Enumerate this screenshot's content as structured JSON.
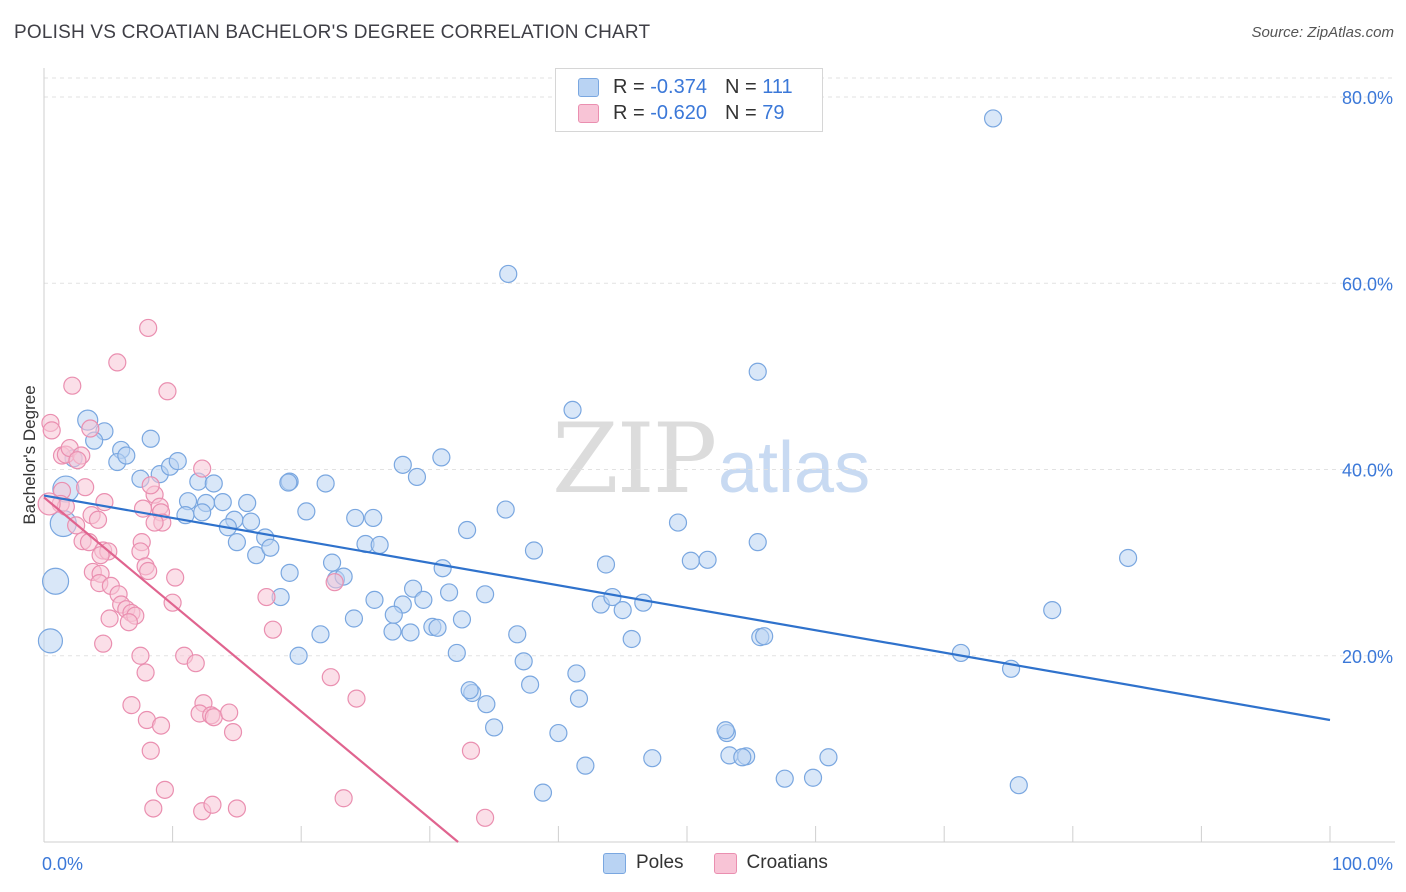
{
  "title": "POLISH VS CROATIAN BACHELOR'S DEGREE CORRELATION CHART",
  "source": "Source: ZipAtlas.com",
  "watermark": {
    "zip": "ZIP",
    "atlas": "atlas"
  },
  "legend": {
    "rows": [
      {
        "r_label": "R =",
        "r_value": "-0.374",
        "n_label": "N =",
        "n_value": "111"
      },
      {
        "r_label": "R =",
        "r_value": "-0.620",
        "n_label": "N =",
        "n_value": "79"
      }
    ]
  },
  "bottom_legend": [
    "Poles",
    "Croatians"
  ],
  "colors": {
    "poles_fill": "#b9d3f3",
    "poles_stroke": "#7aa7e0",
    "poles_line": "#2f72cc",
    "croatians_fill": "#f8c4d6",
    "croatians_stroke": "#ea8fb0",
    "croatians_line": "#e0648f",
    "axis_text": "#3b78d8",
    "grid": "#e2e2e2"
  },
  "chart_data": {
    "type": "scatter",
    "title": "POLISH VS CROATIAN BACHELOR'S DEGREE CORRELATION CHART",
    "xlabel": "",
    "ylabel": "Bachelor's Degree",
    "xlim": [
      0,
      100
    ],
    "ylim": [
      0,
      82
    ],
    "x_tick_labels": [
      "0.0%",
      "100.0%"
    ],
    "y_ticks": [
      20,
      40,
      60,
      80
    ],
    "y_tick_labels": [
      "20.0%",
      "40.0%",
      "60.0%",
      "80.0%"
    ],
    "grid": true,
    "legend_position": "top-center",
    "series": [
      {
        "name": "Poles",
        "r": -0.374,
        "n": 111,
        "trend": {
          "x": [
            0,
            100
          ],
          "y": [
            37.2,
            13.1
          ]
        },
        "points": [
          [
            1.7,
            37.9
          ],
          [
            3.4,
            45.3
          ],
          [
            4.7,
            44.1
          ],
          [
            3.9,
            43.1
          ],
          [
            2.3,
            41.2
          ],
          [
            6.0,
            42.1
          ],
          [
            8.3,
            43.3
          ],
          [
            5.7,
            40.8
          ],
          [
            6.4,
            41.5
          ],
          [
            7.5,
            39.0
          ],
          [
            9.0,
            39.5
          ],
          [
            9.8,
            40.3
          ],
          [
            10.4,
            40.9
          ],
          [
            1.5,
            34.2
          ],
          [
            0.9,
            28.0
          ],
          [
            0.5,
            21.6
          ],
          [
            12.0,
            38.7
          ],
          [
            13.2,
            38.5
          ],
          [
            11.2,
            36.6
          ],
          [
            12.6,
            36.4
          ],
          [
            13.9,
            36.5
          ],
          [
            15.8,
            36.4
          ],
          [
            11.0,
            35.1
          ],
          [
            12.3,
            35.4
          ],
          [
            14.8,
            34.6
          ],
          [
            16.1,
            34.4
          ],
          [
            14.3,
            33.8
          ],
          [
            17.2,
            32.7
          ],
          [
            15.0,
            32.2
          ],
          [
            16.5,
            30.8
          ],
          [
            17.6,
            31.6
          ],
          [
            19.1,
            38.7
          ],
          [
            19.0,
            38.6
          ],
          [
            21.9,
            38.5
          ],
          [
            20.4,
            35.5
          ],
          [
            24.2,
            34.8
          ],
          [
            25.6,
            34.8
          ],
          [
            25.0,
            32.0
          ],
          [
            26.1,
            31.9
          ],
          [
            22.4,
            30.0
          ],
          [
            22.7,
            28.2
          ],
          [
            23.3,
            28.5
          ],
          [
            19.1,
            28.9
          ],
          [
            18.4,
            26.3
          ],
          [
            25.7,
            26.0
          ],
          [
            27.9,
            25.5
          ],
          [
            28.7,
            27.2
          ],
          [
            29.5,
            26.0
          ],
          [
            27.2,
            24.4
          ],
          [
            24.1,
            24.0
          ],
          [
            21.5,
            22.3
          ],
          [
            19.8,
            20.0
          ],
          [
            27.1,
            22.6
          ],
          [
            30.2,
            23.1
          ],
          [
            31.5,
            26.8
          ],
          [
            32.5,
            23.9
          ],
          [
            31.0,
            29.4
          ],
          [
            30.6,
            23.0
          ],
          [
            27.9,
            40.5
          ],
          [
            29.0,
            39.2
          ],
          [
            30.9,
            41.3
          ],
          [
            32.9,
            33.5
          ],
          [
            34.3,
            26.6
          ],
          [
            35.9,
            35.7
          ],
          [
            36.8,
            22.3
          ],
          [
            37.3,
            19.4
          ],
          [
            32.1,
            20.3
          ],
          [
            33.3,
            16.0
          ],
          [
            33.1,
            16.3
          ],
          [
            34.4,
            14.8
          ],
          [
            35.0,
            12.3
          ],
          [
            37.8,
            16.9
          ],
          [
            38.1,
            31.3
          ],
          [
            36.1,
            61.0
          ],
          [
            41.1,
            46.4
          ],
          [
            41.4,
            18.1
          ],
          [
            41.6,
            15.4
          ],
          [
            40.0,
            11.7
          ],
          [
            42.1,
            8.2
          ],
          [
            38.8,
            5.3
          ],
          [
            43.7,
            29.8
          ],
          [
            43.3,
            25.5
          ],
          [
            44.2,
            26.3
          ],
          [
            45.0,
            24.9
          ],
          [
            46.6,
            25.7
          ],
          [
            45.7,
            21.8
          ],
          [
            47.3,
            9.0
          ],
          [
            49.3,
            34.3
          ],
          [
            50.3,
            30.2
          ],
          [
            51.6,
            30.3
          ],
          [
            53.1,
            11.7
          ],
          [
            53.0,
            12.0
          ],
          [
            53.3,
            9.3
          ],
          [
            54.6,
            9.2
          ],
          [
            54.3,
            9.1
          ],
          [
            55.5,
            50.5
          ],
          [
            55.5,
            32.2
          ],
          [
            55.7,
            22.0
          ],
          [
            57.6,
            6.8
          ],
          [
            59.8,
            6.9
          ],
          [
            61.0,
            9.1
          ],
          [
            71.3,
            20.3
          ],
          [
            75.2,
            18.6
          ],
          [
            75.8,
            6.1
          ],
          [
            78.4,
            24.9
          ],
          [
            73.8,
            77.7
          ],
          [
            84.3,
            30.5
          ],
          [
            56.0,
            22.1
          ],
          [
            28.5,
            22.5
          ]
        ]
      },
      {
        "name": "Croatians",
        "r": -0.62,
        "n": 79,
        "trend": {
          "x": [
            0,
            32.2
          ],
          "y": [
            37.0,
            0
          ]
        },
        "points": [
          [
            0.5,
            45.0
          ],
          [
            0.6,
            44.2
          ],
          [
            1.4,
            41.5
          ],
          [
            1.7,
            41.6
          ],
          [
            2.0,
            42.3
          ],
          [
            3.6,
            44.4
          ],
          [
            2.2,
            49.0
          ],
          [
            1.4,
            37.7
          ],
          [
            1.3,
            36.3
          ],
          [
            1.7,
            36.0
          ],
          [
            2.5,
            34.0
          ],
          [
            3.0,
            32.3
          ],
          [
            3.5,
            32.2
          ],
          [
            3.7,
            35.1
          ],
          [
            4.2,
            34.6
          ],
          [
            4.7,
            36.5
          ],
          [
            4.6,
            31.3
          ],
          [
            5.0,
            31.2
          ],
          [
            4.4,
            30.8
          ],
          [
            3.8,
            29.0
          ],
          [
            4.4,
            28.8
          ],
          [
            4.3,
            27.8
          ],
          [
            5.2,
            27.5
          ],
          [
            5.8,
            26.6
          ],
          [
            6.0,
            25.5
          ],
          [
            6.4,
            25.0
          ],
          [
            6.8,
            24.6
          ],
          [
            7.1,
            24.3
          ],
          [
            6.6,
            23.6
          ],
          [
            5.1,
            24.0
          ],
          [
            4.6,
            21.3
          ],
          [
            7.5,
            20.0
          ],
          [
            7.9,
            18.2
          ],
          [
            6.8,
            14.7
          ],
          [
            8.0,
            13.1
          ],
          [
            9.1,
            12.5
          ],
          [
            8.3,
            9.8
          ],
          [
            8.5,
            3.6
          ],
          [
            9.4,
            5.6
          ],
          [
            10.2,
            28.4
          ],
          [
            10.0,
            25.7
          ],
          [
            10.9,
            20.0
          ],
          [
            11.8,
            19.2
          ],
          [
            12.4,
            14.9
          ],
          [
            12.1,
            13.8
          ],
          [
            13.0,
            13.6
          ],
          [
            13.2,
            13.4
          ],
          [
            14.4,
            13.9
          ],
          [
            14.7,
            11.8
          ],
          [
            12.3,
            3.3
          ],
          [
            13.1,
            4.0
          ],
          [
            15.0,
            3.6
          ],
          [
            8.6,
            37.3
          ],
          [
            8.3,
            38.3
          ],
          [
            9.0,
            36.0
          ],
          [
            9.1,
            35.4
          ],
          [
            9.2,
            34.3
          ],
          [
            8.6,
            34.3
          ],
          [
            7.7,
            35.8
          ],
          [
            7.6,
            32.2
          ],
          [
            7.5,
            31.2
          ],
          [
            7.9,
            29.6
          ],
          [
            8.1,
            29.1
          ],
          [
            8.1,
            55.2
          ],
          [
            5.7,
            51.5
          ],
          [
            9.6,
            48.4
          ],
          [
            12.3,
            40.1
          ],
          [
            2.9,
            41.5
          ],
          [
            2.6,
            41.0
          ],
          [
            17.3,
            26.3
          ],
          [
            17.8,
            22.8
          ],
          [
            22.6,
            27.9
          ],
          [
            22.3,
            17.7
          ],
          [
            24.3,
            15.4
          ],
          [
            23.3,
            4.7
          ],
          [
            33.2,
            9.8
          ],
          [
            34.3,
            2.6
          ],
          [
            3.2,
            38.1
          ],
          [
            0.4,
            36.3
          ]
        ]
      }
    ]
  }
}
